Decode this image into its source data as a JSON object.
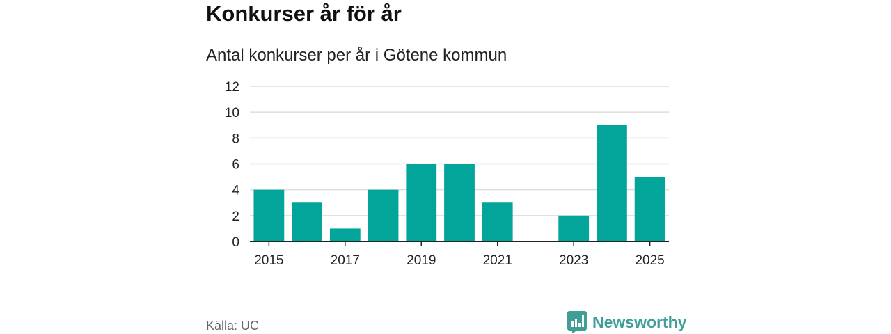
{
  "header": {
    "title": "Konkurser år för år",
    "subtitle": "Antal konkurser per år i Götene kommun"
  },
  "footer": {
    "source": "Källa: UC",
    "brand": "Newsworthy",
    "brand_icon": "bar-chart-speech-bubble-icon"
  },
  "chart_data": {
    "type": "bar",
    "categories": [
      "2015",
      "2016",
      "2017",
      "2018",
      "2019",
      "2020",
      "2021",
      "2022",
      "2023",
      "2024",
      "2025"
    ],
    "values": [
      4,
      3,
      1,
      4,
      6,
      6,
      3,
      0,
      2,
      9,
      5
    ],
    "xtick_labels": [
      "2015",
      "2017",
      "2019",
      "2021",
      "2023",
      "2025"
    ],
    "ylim": [
      0,
      12
    ],
    "yticks": [
      0,
      2,
      4,
      6,
      8,
      10,
      12
    ],
    "grid": true,
    "bar_color": "#03a59a",
    "grid_color": "#dddddd",
    "axis_color": "#222222"
  }
}
